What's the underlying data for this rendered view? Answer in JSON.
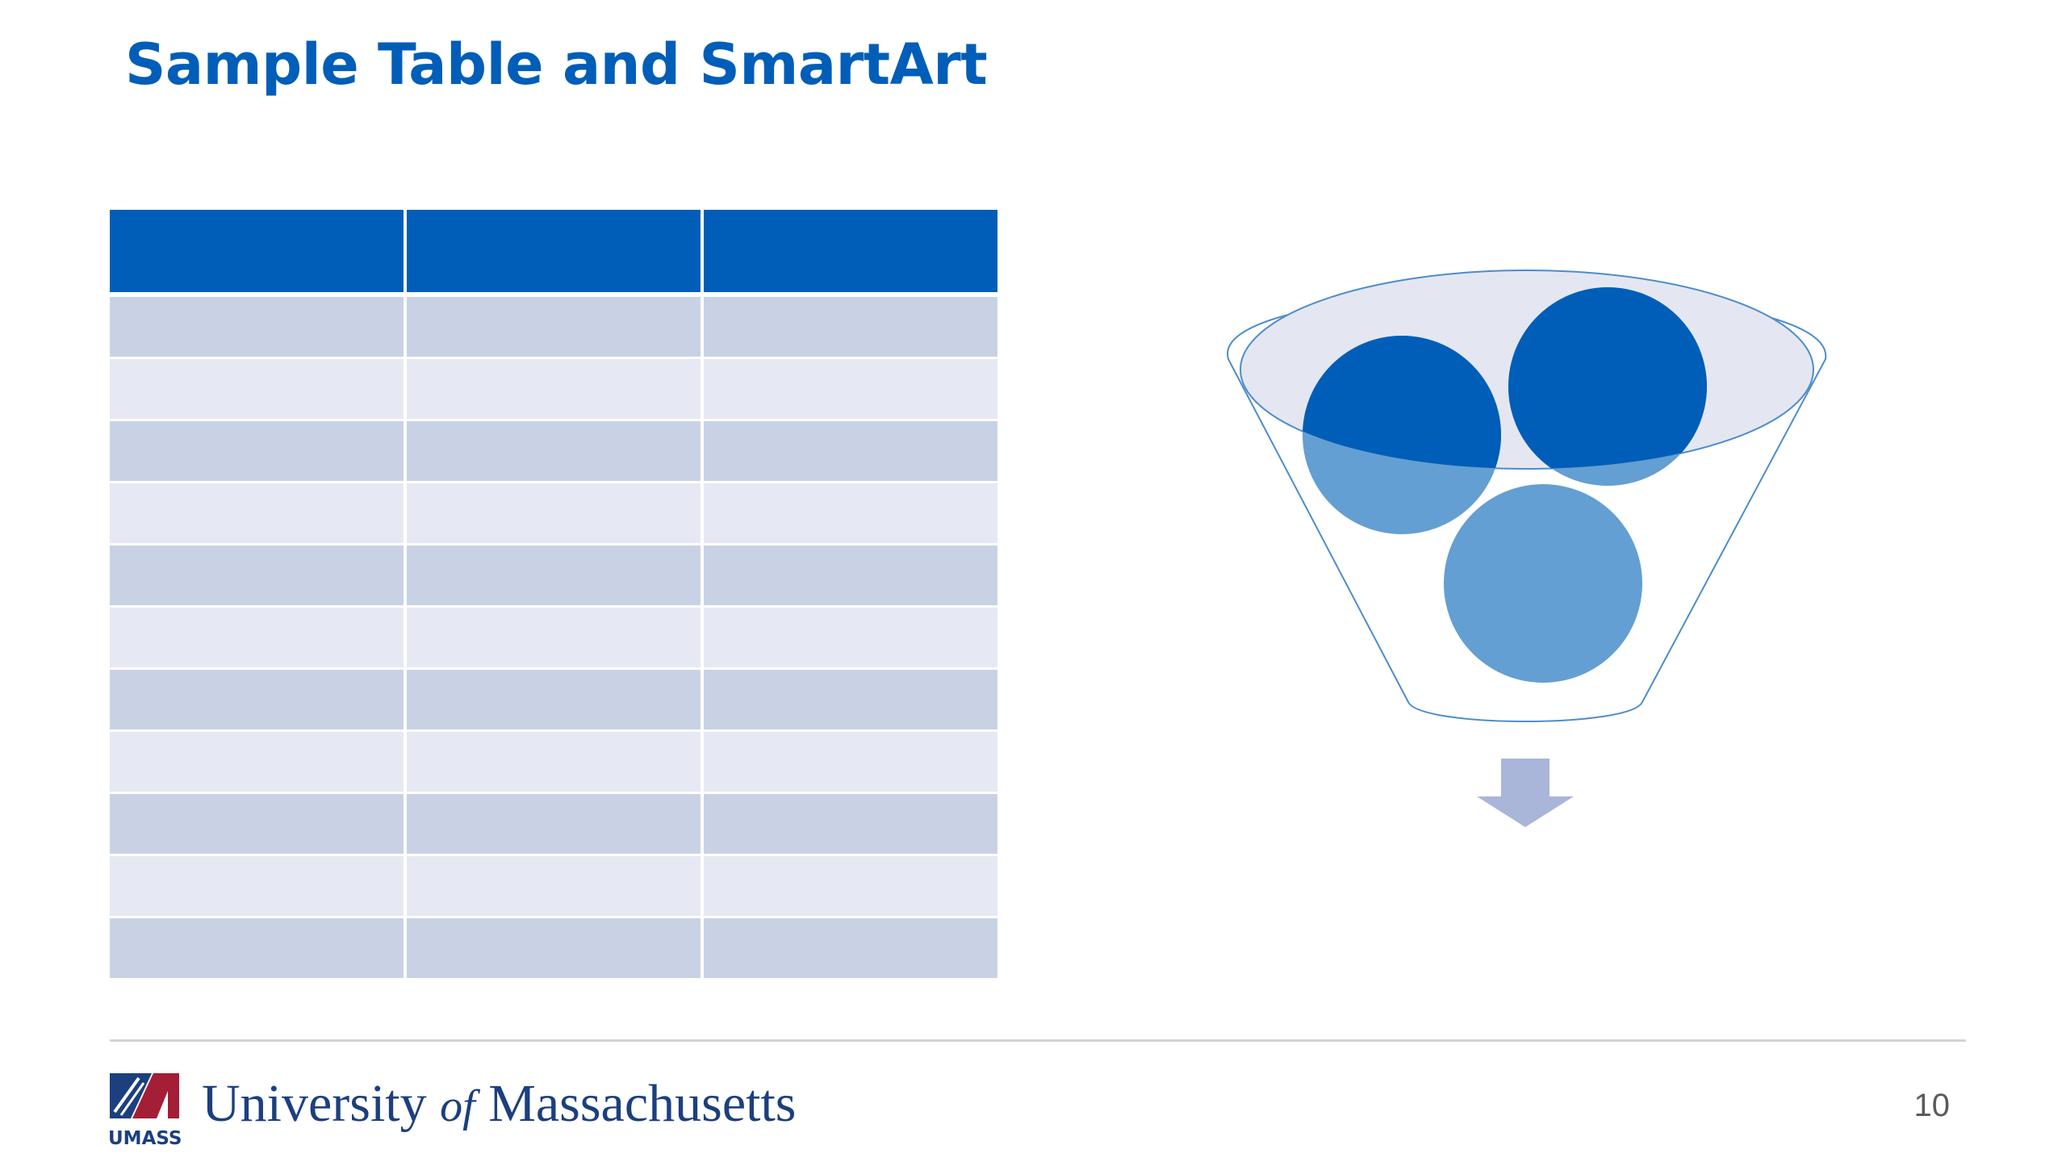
{
  "slide": {
    "title": "Sample Table and SmartArt",
    "page_number": "10"
  },
  "table": {
    "columns": 3,
    "header": [
      "",
      "",
      ""
    ],
    "rows": [
      [
        "",
        "",
        ""
      ],
      [
        "",
        "",
        ""
      ],
      [
        "",
        "",
        ""
      ],
      [
        "",
        "",
        ""
      ],
      [
        "",
        "",
        ""
      ],
      [
        "",
        "",
        ""
      ],
      [
        "",
        "",
        ""
      ],
      [
        "",
        "",
        ""
      ],
      [
        "",
        "",
        ""
      ],
      [
        "",
        "",
        ""
      ],
      [
        "",
        "",
        ""
      ]
    ]
  },
  "smartart": {
    "type": "funnel",
    "icons": [
      "funnel-outline",
      "funnel-circle",
      "down-arrow-icon"
    ]
  },
  "footer": {
    "logo_text": "UMASS",
    "university_prefix": "University ",
    "university_of": "of",
    "university_suffix": " Massachusetts"
  },
  "colors": {
    "brand_blue": "#005eb8",
    "light_blue": "#639fd2",
    "row_dark": "#c9d2e5",
    "row_light": "#e6e9f3",
    "umass_red": "#a41e35",
    "umass_navy": "#1c3f7f"
  }
}
